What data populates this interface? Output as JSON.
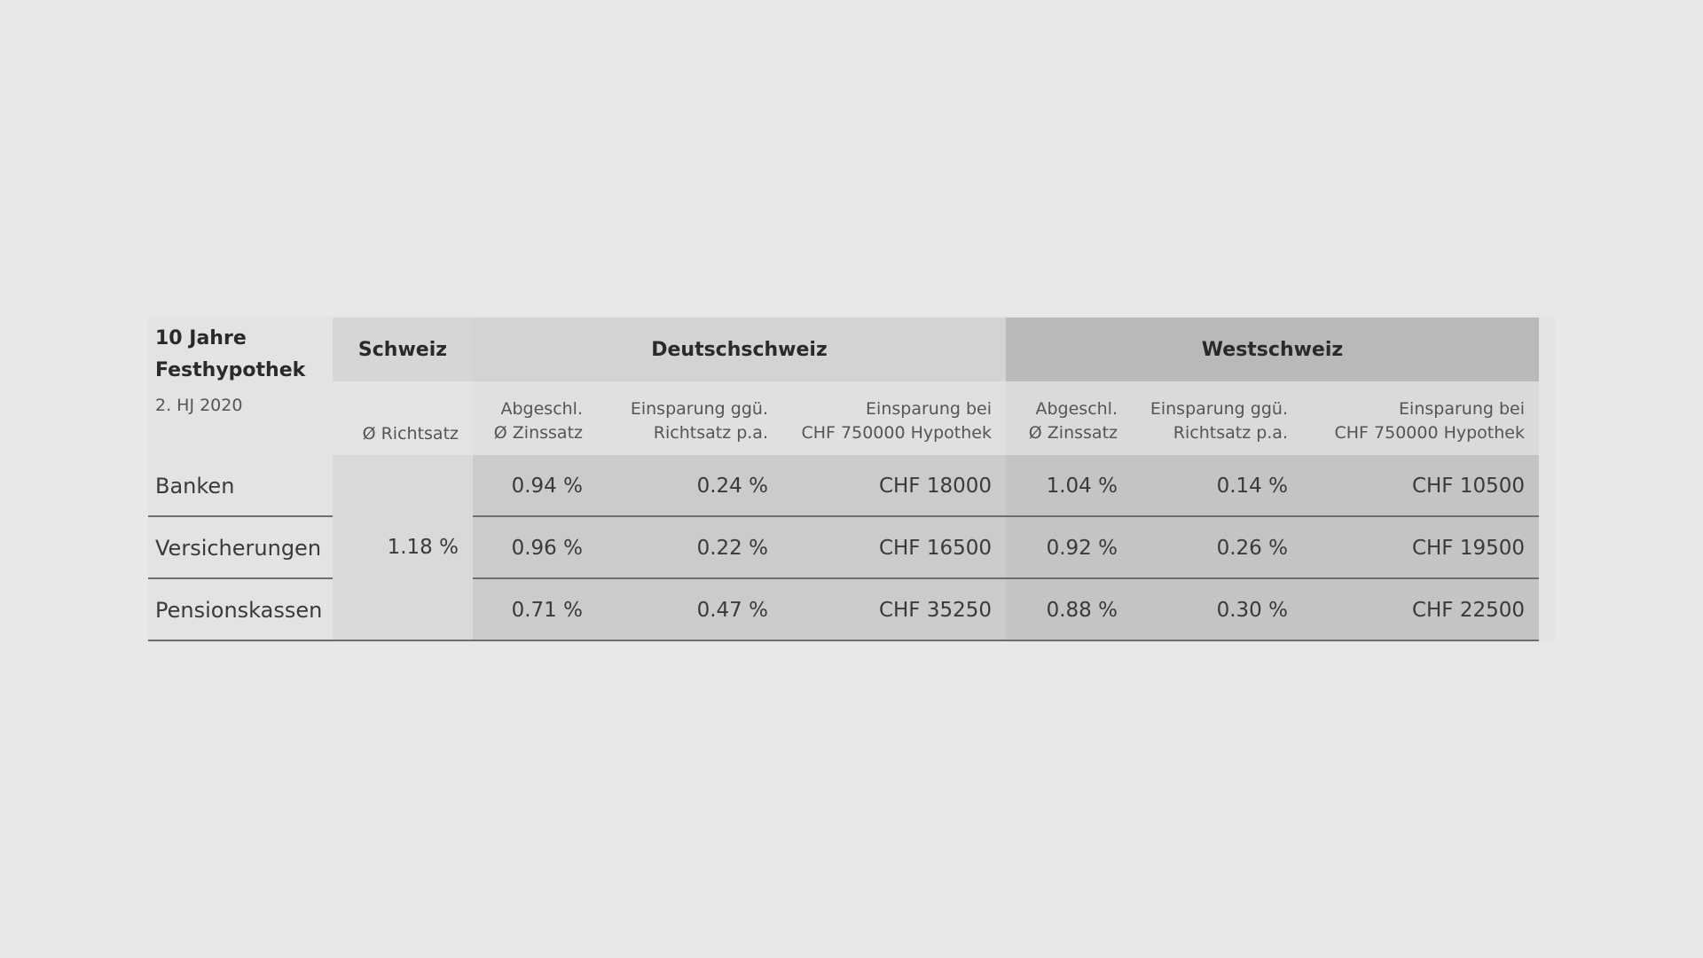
{
  "table": {
    "title": "10 Jahre\nFesthypothek",
    "period": "2. HJ 2020",
    "groups": {
      "schweiz": "Schweiz",
      "deutschschweiz": "Deutschschweiz",
      "westschweiz": "Westschweiz"
    },
    "subheaders": {
      "richtsatz": "Ø Richtsatz",
      "ds_zinssatz": "Abgeschl.\nØ Zinssatz",
      "ds_einsparung_pa": "Einsparung ggü.\nRichtsatz p.a.",
      "ds_einsparung_chf": "Einsparung bei\nCHF 750000 Hypothek",
      "ws_zinssatz": "Abgeschl.\nØ Zinssatz",
      "ws_einsparung_pa": "Einsparung ggü.\nRichtsatz p.a.",
      "ws_einsparung_chf": "Einsparung bei\nCHF 750000 Hypothek"
    },
    "richtsatz_value": "1.18 %",
    "rows": [
      {
        "label": "Banken",
        "ds_zinssatz": "0.94 %",
        "ds_einsparung_pa": "0.24 %",
        "ds_einsparung_chf": "CHF 18000",
        "ws_zinssatz": "1.04 %",
        "ws_einsparung_pa": "0.14 %",
        "ws_einsparung_chf": "CHF 10500"
      },
      {
        "label": "Versicherungen",
        "ds_zinssatz": "0.96 %",
        "ds_einsparung_pa": "0.22 %",
        "ds_einsparung_chf": "CHF 16500",
        "ws_zinssatz": "0.92 %",
        "ws_einsparung_pa": "0.26 %",
        "ws_einsparung_chf": "CHF 19500"
      },
      {
        "label": "Pensionskassen",
        "ds_zinssatz": "0.71 %",
        "ds_einsparung_pa": "0.47 %",
        "ds_einsparung_chf": "CHF 35250",
        "ws_zinssatz": "0.88 %",
        "ws_einsparung_pa": "0.30 %",
        "ws_einsparung_chf": "CHF 22500"
      }
    ]
  }
}
